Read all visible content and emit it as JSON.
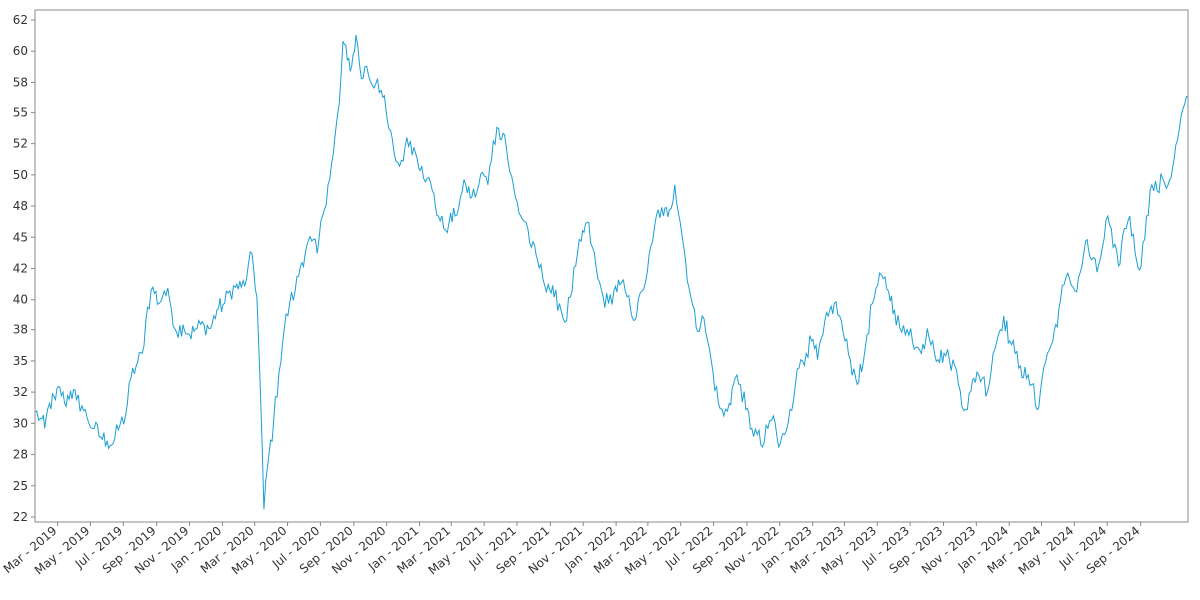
{
  "chart_data": {
    "type": "line",
    "title": "",
    "xlabel": "",
    "ylabel": "",
    "grid": false,
    "ylim": [
      22,
      63
    ],
    "yticks": [
      "62",
      "60",
      "58",
      "55",
      "52",
      "50",
      "48",
      "45",
      "42",
      "40",
      "38",
      "35",
      "32",
      "30",
      "28",
      "25",
      "22"
    ],
    "ytick_values": [
      62.2,
      59.7,
      57.2,
      54.8,
      52.3,
      49.8,
      47.3,
      44.8,
      42.3,
      39.8,
      37.4,
      34.9,
      32.4,
      29.9,
      27.4,
      24.9,
      22.4
    ],
    "xticks": [
      "Mar - 2019",
      "May - 2019",
      "Jul - 2019",
      "Sep - 2019",
      "Nov - 2019",
      "Jan - 2020",
      "Mar - 2020",
      "May - 2020",
      "Jul - 2020",
      "Sep - 2020",
      "Nov - 2020",
      "Jan - 2021",
      "Mar - 2021",
      "May - 2021",
      "Jul - 2021",
      "Sep - 2021",
      "Nov - 2021",
      "Jan - 2022",
      "Mar - 2022",
      "May - 2022",
      "Jul - 2022",
      "Sep - 2022",
      "Nov - 2022",
      "Jan - 2023",
      "Mar - 2023",
      "May - 2023",
      "Jul - 2023",
      "Sep - 2023",
      "Nov - 2023",
      "Jan - 2024",
      "Mar - 2024",
      "May - 2024",
      "Jul - 2024",
      "Sep - 2024"
    ],
    "xtick_dates": [
      "2019-03-01",
      "2019-05-01",
      "2019-07-01",
      "2019-09-01",
      "2019-11-01",
      "2020-01-01",
      "2020-03-01",
      "2020-05-01",
      "2020-07-01",
      "2020-09-01",
      "2020-11-01",
      "2021-01-01",
      "2021-03-01",
      "2021-05-01",
      "2021-07-01",
      "2021-09-01",
      "2021-11-01",
      "2022-01-01",
      "2022-03-01",
      "2022-05-01",
      "2022-07-01",
      "2022-09-01",
      "2022-11-01",
      "2023-01-01",
      "2023-03-01",
      "2023-05-01",
      "2023-07-01",
      "2023-09-01",
      "2023-11-01",
      "2024-01-01",
      "2024-03-01",
      "2024-05-01",
      "2024-07-01",
      "2024-09-01"
    ],
    "xlim": [
      "2019-01-18",
      "2024-11-28"
    ],
    "series": [
      {
        "color": "#1a9fd6",
        "points": [
          [
            "2019-01-18",
            30.8
          ],
          [
            "2019-01-28",
            30.3
          ],
          [
            "2019-02-05",
            29.5
          ],
          [
            "2019-02-14",
            31.5
          ],
          [
            "2019-02-25",
            31.8
          ],
          [
            "2019-03-05",
            32.8
          ],
          [
            "2019-03-14",
            31.5
          ],
          [
            "2019-03-25",
            32.5
          ],
          [
            "2019-04-05",
            31.8
          ],
          [
            "2019-04-15",
            31.3
          ],
          [
            "2019-04-25",
            30.3
          ],
          [
            "2019-05-08",
            29.5
          ],
          [
            "2019-05-20",
            28.8
          ],
          [
            "2019-06-01",
            28.5
          ],
          [
            "2019-06-12",
            28.3
          ],
          [
            "2019-06-25",
            29.8
          ],
          [
            "2019-07-05",
            30.5
          ],
          [
            "2019-07-15",
            33.5
          ],
          [
            "2019-07-25",
            34.5
          ],
          [
            "2019-08-05",
            35.5
          ],
          [
            "2019-08-15",
            39.2
          ],
          [
            "2019-08-25",
            40.8
          ],
          [
            "2019-09-05",
            39.5
          ],
          [
            "2019-09-15",
            40.5
          ],
          [
            "2019-09-25",
            39.8
          ],
          [
            "2019-10-08",
            37.2
          ],
          [
            "2019-10-20",
            37.8
          ],
          [
            "2019-11-01",
            37.0
          ],
          [
            "2019-11-15",
            37.5
          ],
          [
            "2019-11-28",
            37.8
          ],
          [
            "2019-12-10",
            37.5
          ],
          [
            "2019-12-22",
            39.0
          ],
          [
            "2020-01-05",
            39.5
          ],
          [
            "2020-01-15",
            40.5
          ],
          [
            "2020-01-25",
            40.8
          ],
          [
            "2020-02-05",
            40.8
          ],
          [
            "2020-02-15",
            41.5
          ],
          [
            "2020-02-25",
            43.5
          ],
          [
            "2020-03-05",
            40.0
          ],
          [
            "2020-03-12",
            32.0
          ],
          [
            "2020-03-18",
            23.0
          ],
          [
            "2020-03-25",
            26.5
          ],
          [
            "2020-04-05",
            30.0
          ],
          [
            "2020-04-15",
            34.0
          ],
          [
            "2020-04-25",
            37.5
          ],
          [
            "2020-05-05",
            39.5
          ],
          [
            "2020-05-15",
            40.5
          ],
          [
            "2020-05-25",
            42.5
          ],
          [
            "2020-06-05",
            44.0
          ],
          [
            "2020-06-15",
            44.5
          ],
          [
            "2020-06-25",
            43.5
          ],
          [
            "2020-07-05",
            46.5
          ],
          [
            "2020-07-15",
            49.0
          ],
          [
            "2020-07-25",
            51.5
          ],
          [
            "2020-08-05",
            55.5
          ],
          [
            "2020-08-12",
            60.5
          ],
          [
            "2020-08-20",
            59.0
          ],
          [
            "2020-08-28",
            58.5
          ],
          [
            "2020-09-05",
            61.0
          ],
          [
            "2020-09-15",
            57.5
          ],
          [
            "2020-09-25",
            58.5
          ],
          [
            "2020-10-05",
            57.0
          ],
          [
            "2020-10-15",
            57.5
          ],
          [
            "2020-10-25",
            56.0
          ],
          [
            "2020-11-05",
            53.5
          ],
          [
            "2020-11-15",
            51.5
          ],
          [
            "2020-11-25",
            50.5
          ],
          [
            "2020-12-05",
            52.0
          ],
          [
            "2020-12-15",
            52.5
          ],
          [
            "2020-12-25",
            51.5
          ],
          [
            "2021-01-05",
            50.5
          ],
          [
            "2021-01-15",
            49.5
          ],
          [
            "2021-01-25",
            48.5
          ],
          [
            "2021-02-05",
            46.5
          ],
          [
            "2021-02-15",
            45.5
          ],
          [
            "2021-02-25",
            46.0
          ],
          [
            "2021-03-08",
            46.5
          ],
          [
            "2021-03-18",
            48.0
          ],
          [
            "2021-03-28",
            49.0
          ],
          [
            "2021-04-08",
            48.0
          ],
          [
            "2021-04-18",
            48.5
          ],
          [
            "2021-04-28",
            50.0
          ],
          [
            "2021-05-08",
            49.0
          ],
          [
            "2021-05-18",
            52.5
          ],
          [
            "2021-05-28",
            53.5
          ],
          [
            "2021-06-08",
            53.0
          ],
          [
            "2021-06-18",
            50.0
          ],
          [
            "2021-06-28",
            48.0
          ],
          [
            "2021-07-08",
            46.5
          ],
          [
            "2021-07-18",
            46.0
          ],
          [
            "2021-07-28",
            44.0
          ],
          [
            "2021-08-08",
            43.0
          ],
          [
            "2021-08-18",
            41.5
          ],
          [
            "2021-08-28",
            41.0
          ],
          [
            "2021-09-08",
            40.0
          ],
          [
            "2021-09-18",
            39.5
          ],
          [
            "2021-09-28",
            38.0
          ],
          [
            "2021-10-08",
            40.0
          ],
          [
            "2021-10-18",
            42.5
          ],
          [
            "2021-10-28",
            44.5
          ],
          [
            "2021-11-08",
            46.0
          ],
          [
            "2021-11-18",
            44.0
          ],
          [
            "2021-11-28",
            41.5
          ],
          [
            "2021-12-08",
            40.0
          ],
          [
            "2021-12-18",
            39.5
          ],
          [
            "2021-12-28",
            40.5
          ],
          [
            "2022-01-08",
            41.0
          ],
          [
            "2022-01-18",
            40.5
          ],
          [
            "2022-01-28",
            39.0
          ],
          [
            "2022-02-08",
            38.5
          ],
          [
            "2022-02-18",
            40.5
          ],
          [
            "2022-02-28",
            42.0
          ],
          [
            "2022-03-10",
            44.5
          ],
          [
            "2022-03-20",
            47.0
          ],
          [
            "2022-03-30",
            46.5
          ],
          [
            "2022-04-10",
            47.0
          ],
          [
            "2022-04-20",
            49.0
          ],
          [
            "2022-04-30",
            46.0
          ],
          [
            "2022-05-10",
            43.0
          ],
          [
            "2022-05-20",
            40.0
          ],
          [
            "2022-05-30",
            37.5
          ],
          [
            "2022-06-10",
            38.5
          ],
          [
            "2022-06-20",
            36.5
          ],
          [
            "2022-06-30",
            34.0
          ],
          [
            "2022-07-10",
            31.5
          ],
          [
            "2022-07-20",
            30.5
          ],
          [
            "2022-07-30",
            31.5
          ],
          [
            "2022-08-10",
            33.5
          ],
          [
            "2022-08-20",
            33.0
          ],
          [
            "2022-08-30",
            31.0
          ],
          [
            "2022-09-10",
            29.5
          ],
          [
            "2022-09-20",
            29.0
          ],
          [
            "2022-09-30",
            28.0
          ],
          [
            "2022-10-10",
            29.5
          ],
          [
            "2022-10-20",
            30.5
          ],
          [
            "2022-10-30",
            28.0
          ],
          [
            "2022-11-10",
            29.0
          ],
          [
            "2022-11-20",
            31.0
          ],
          [
            "2022-11-30",
            33.0
          ],
          [
            "2022-12-10",
            35.0
          ],
          [
            "2022-12-20",
            35.5
          ],
          [
            "2022-12-30",
            36.5
          ],
          [
            "2023-01-10",
            35.0
          ],
          [
            "2023-01-20",
            37.0
          ],
          [
            "2023-01-30",
            38.5
          ],
          [
            "2023-02-10",
            39.5
          ],
          [
            "2023-02-20",
            38.5
          ],
          [
            "2023-03-02",
            36.5
          ],
          [
            "2023-03-12",
            35.0
          ],
          [
            "2023-03-22",
            33.5
          ],
          [
            "2023-04-02",
            34.0
          ],
          [
            "2023-04-12",
            37.0
          ],
          [
            "2023-04-22",
            39.5
          ],
          [
            "2023-05-02",
            41.0
          ],
          [
            "2023-05-12",
            41.5
          ],
          [
            "2023-05-22",
            40.5
          ],
          [
            "2023-06-02",
            39.0
          ],
          [
            "2023-06-12",
            37.5
          ],
          [
            "2023-06-22",
            37.0
          ],
          [
            "2023-07-02",
            37.5
          ],
          [
            "2023-07-12",
            36.0
          ],
          [
            "2023-07-22",
            35.5
          ],
          [
            "2023-08-02",
            37.5
          ],
          [
            "2023-08-12",
            36.5
          ],
          [
            "2023-08-22",
            35.0
          ],
          [
            "2023-09-02",
            35.5
          ],
          [
            "2023-09-12",
            35.0
          ],
          [
            "2023-09-22",
            34.5
          ],
          [
            "2023-10-02",
            32.5
          ],
          [
            "2023-10-12",
            31.0
          ],
          [
            "2023-10-22",
            32.5
          ],
          [
            "2023-11-02",
            34.0
          ],
          [
            "2023-11-12",
            33.5
          ],
          [
            "2023-11-22",
            32.5
          ],
          [
            "2023-12-02",
            35.5
          ],
          [
            "2023-12-12",
            37.0
          ],
          [
            "2023-12-22",
            38.5
          ],
          [
            "2024-01-02",
            36.5
          ],
          [
            "2024-01-12",
            35.5
          ],
          [
            "2024-01-22",
            34.5
          ],
          [
            "2024-02-02",
            33.5
          ],
          [
            "2024-02-12",
            33.0
          ],
          [
            "2024-02-22",
            31.0
          ],
          [
            "2024-03-02",
            33.5
          ],
          [
            "2024-03-12",
            35.5
          ],
          [
            "2024-03-22",
            36.5
          ],
          [
            "2024-04-02",
            39.0
          ],
          [
            "2024-04-12",
            41.0
          ],
          [
            "2024-04-22",
            41.5
          ],
          [
            "2024-05-02",
            40.5
          ],
          [
            "2024-05-12",
            42.0
          ],
          [
            "2024-05-22",
            44.5
          ],
          [
            "2024-06-02",
            43.0
          ],
          [
            "2024-06-12",
            42.0
          ],
          [
            "2024-06-22",
            44.0
          ],
          [
            "2024-07-02",
            46.5
          ],
          [
            "2024-07-12",
            44.0
          ],
          [
            "2024-07-22",
            42.5
          ],
          [
            "2024-08-02",
            45.5
          ],
          [
            "2024-08-12",
            46.5
          ],
          [
            "2024-08-22",
            43.5
          ],
          [
            "2024-09-02",
            42.5
          ],
          [
            "2024-09-12",
            46.5
          ],
          [
            "2024-09-22",
            49.0
          ],
          [
            "2024-10-02",
            48.5
          ],
          [
            "2024-10-12",
            49.5
          ],
          [
            "2024-10-22",
            49.0
          ],
          [
            "2024-11-02",
            51.0
          ],
          [
            "2024-11-12",
            53.5
          ],
          [
            "2024-11-22",
            55.5
          ],
          [
            "2024-11-28",
            56.0
          ]
        ]
      }
    ]
  }
}
